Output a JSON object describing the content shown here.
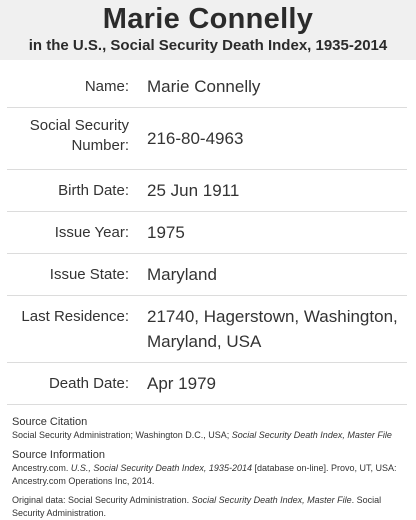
{
  "header": {
    "name": "Marie Connelly",
    "collection": "in the U.S., Social Security Death Index, 1935-2014"
  },
  "fields": [
    {
      "label": "Name:",
      "value": "Marie Connelly"
    },
    {
      "label": "Social Security Number:",
      "value": "216-80-4963"
    },
    {
      "label": "Birth Date:",
      "value": "25 Jun 1911"
    },
    {
      "label": "Issue Year:",
      "value": "1975"
    },
    {
      "label": "Issue State:",
      "value": "Maryland"
    },
    {
      "label": "Last Residence:",
      "value": "21740, Hagerstown, Washington, Maryland, USA"
    },
    {
      "label": "Death Date:",
      "value": "Apr 1979"
    }
  ],
  "source_citation": {
    "label": "Source Citation",
    "text_plain": "Social Security Administration; Washington D.C., USA; ",
    "text_italic": "Social Security Death Index, Master File"
  },
  "source_information": {
    "label": "Source Information",
    "text_a": "Ancestry.com. ",
    "text_italic": "U.S., Social Security Death Index, 1935-2014",
    "text_b": " [database on-line]. Provo, UT, USA: Ancestry.com Operations Inc, 2014."
  },
  "original_data": {
    "text_a": "Original data: Social Security Administration. ",
    "text_italic": "Social Security Death Index, Master File",
    "text_b": ". Social Security Administration."
  }
}
